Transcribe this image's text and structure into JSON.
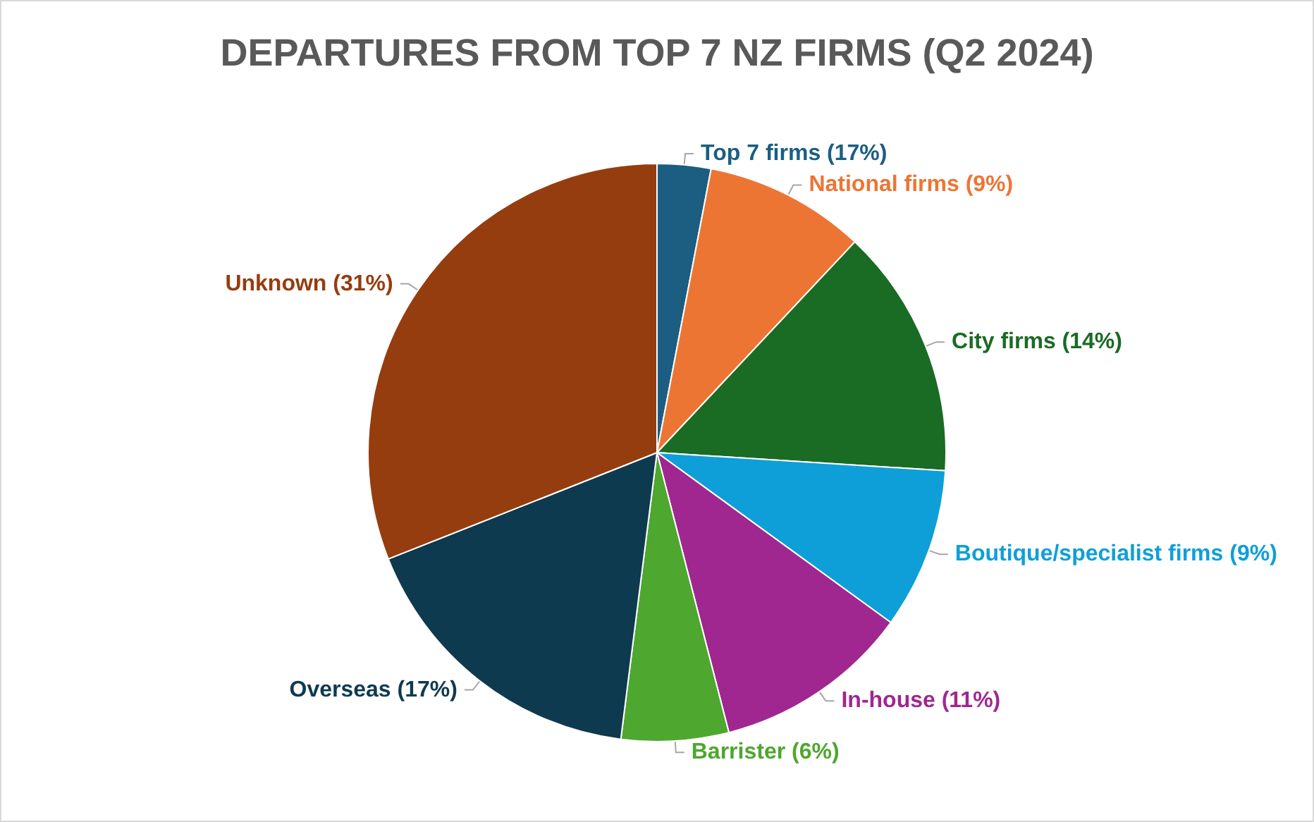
{
  "chart_data": {
    "type": "pie",
    "title": "DEPARTURES FROM TOP 7 NZ FIRMS (Q2 2024)",
    "categories": [
      "Top 7 firms (17%)",
      "National firms (9%)",
      "City firms (14%)",
      "Boutique/specialist firms (9%)",
      "In-house (11%)",
      "Barrister (6%)",
      "Overseas (17%)",
      "Unknown (31%)"
    ],
    "values": [
      3,
      9,
      14,
      9,
      11,
      6,
      17,
      31
    ],
    "colors": [
      "#1b5e82",
      "#ed7534",
      "#1a6b24",
      "#0f9fd8",
      "#a0278f",
      "#4ea72e",
      "#0e3a50",
      "#953d0e"
    ],
    "legend": false
  }
}
